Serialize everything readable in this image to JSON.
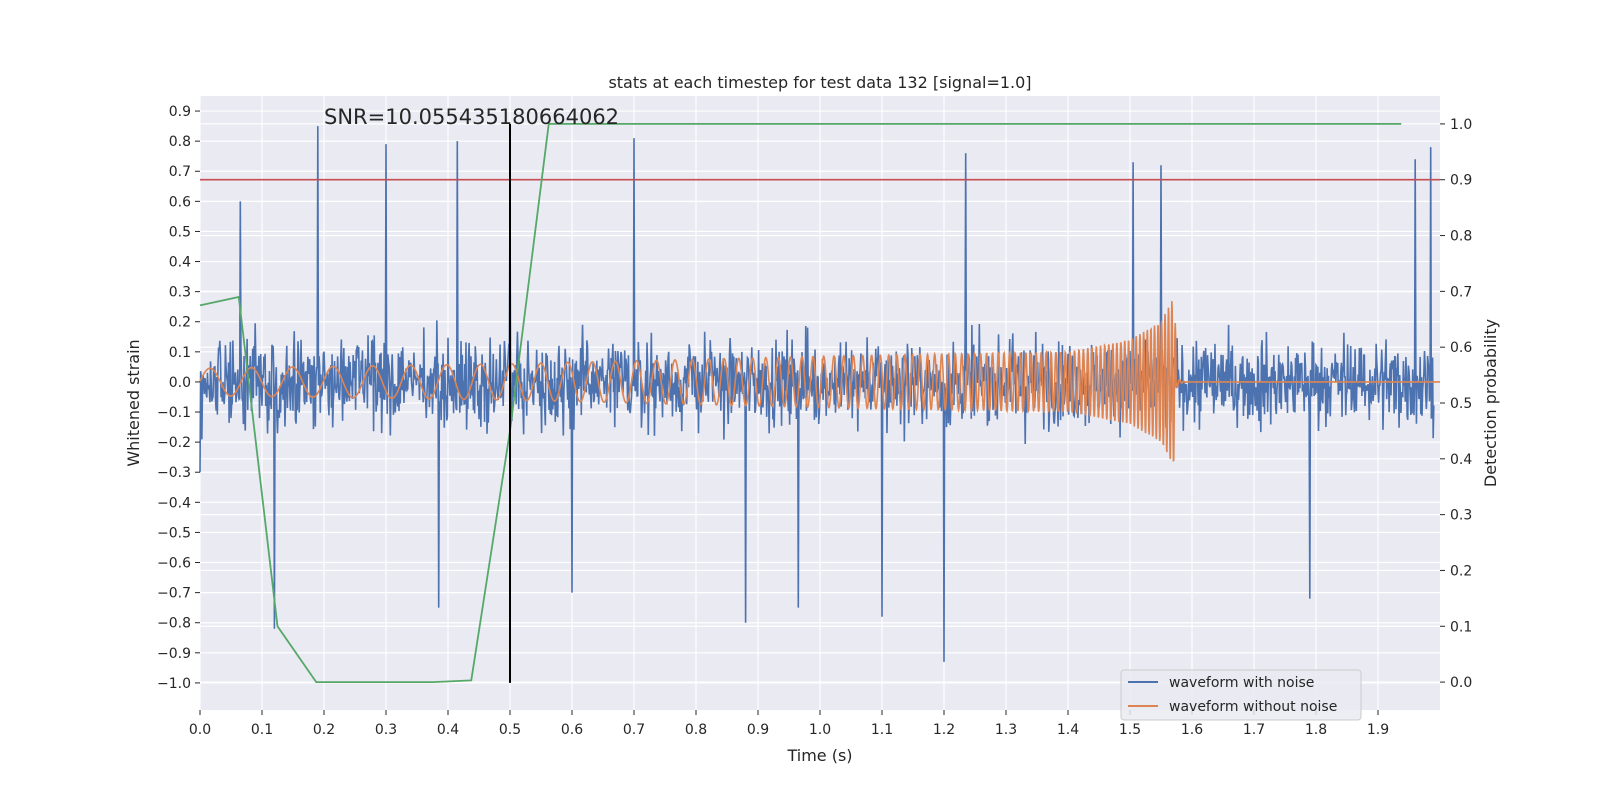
{
  "chart_data": {
    "type": "line",
    "title": "stats at each timestep for test data 132 [signal=1.0]",
    "xlabel": "Time (s)",
    "ylabel_left": "Whitened strain",
    "ylabel_right": "Detection probability",
    "xlim": [
      0.0,
      2.0
    ],
    "ylim_left": [
      -1.09,
      0.95
    ],
    "ylim_right": [
      -0.05,
      1.05
    ],
    "x_ticks": [
      "0.0",
      "0.1",
      "0.2",
      "0.3",
      "0.4",
      "0.5",
      "0.6",
      "0.7",
      "0.8",
      "0.9",
      "1.0",
      "1.1",
      "1.2",
      "1.3",
      "1.4",
      "1.5",
      "1.6",
      "1.7",
      "1.8",
      "1.9"
    ],
    "y_ticks_left": [
      "0.9",
      "0.8",
      "0.7",
      "0.6",
      "0.5",
      "0.4",
      "0.3",
      "0.2",
      "0.1",
      "0.0",
      "−0.1",
      "−0.2",
      "−0.3",
      "−0.4",
      "−0.5",
      "−0.6",
      "−0.7",
      "−0.8",
      "−0.9",
      "−1.0"
    ],
    "y_ticks_right": [
      "1.0",
      "0.9",
      "0.8",
      "0.7",
      "0.6",
      "0.5",
      "0.4",
      "0.3",
      "0.2",
      "0.1",
      "0.0"
    ],
    "grid": true,
    "legend_position": "bottom-right",
    "annotation": "SNR=10.055435180664062",
    "threshold_line": {
      "axis": "right",
      "value": 0.9,
      "color": "#c44e52"
    },
    "event_line": {
      "x": 0.5,
      "color": "#000000"
    },
    "series": [
      {
        "name": "waveform with noise",
        "axis": "left",
        "color": "#4c72b0",
        "description_samples": {
          "x": [
            0.0,
            0.065,
            0.12,
            0.19,
            0.3,
            0.385,
            0.415,
            0.5,
            0.6,
            0.7,
            0.88,
            0.965,
            1.1,
            1.2,
            1.235,
            1.505,
            1.55,
            1.79,
            1.96,
            1.985
          ],
          "y": [
            -0.3,
            0.6,
            -0.82,
            0.85,
            0.79,
            -0.75,
            0.8,
            0.63,
            -0.7,
            0.81,
            -0.8,
            -0.75,
            -0.78,
            -0.93,
            0.76,
            0.73,
            0.72,
            -0.72,
            0.74,
            0.78
          ]
        }
      },
      {
        "name": "waveform without noise",
        "axis": "left",
        "color": "#dd8452",
        "description_samples": {
          "x": [
            0.0,
            0.5,
            1.0,
            1.4,
            1.5,
            1.55,
            1.57,
            1.58,
            2.0
          ],
          "y": [
            0.045,
            0.06,
            0.085,
            0.1,
            0.14,
            0.2,
            0.28,
            0.0,
            0.0
          ]
        }
      },
      {
        "name": "",
        "axis": "right",
        "color": "#55a868",
        "x": [
          0.0,
          0.0625,
          0.125,
          0.1875,
          0.25,
          0.3125,
          0.375,
          0.4375,
          0.5,
          0.5625,
          0.625,
          0.6875,
          0.75,
          0.8125,
          0.875,
          0.9375,
          1.0,
          1.0625,
          1.125,
          1.1875,
          1.25,
          1.3125,
          1.375,
          1.4375,
          1.5,
          1.5625,
          1.625,
          1.6875,
          1.75,
          1.8125,
          1.875,
          1.9375
        ],
        "y": [
          0.675,
          0.69,
          0.1,
          0.0,
          0.0,
          0.0,
          0.0,
          0.003,
          0.45,
          1.0,
          1.0,
          1.0,
          1.0,
          1.0,
          1.0,
          1.0,
          1.0,
          1.0,
          1.0,
          1.0,
          1.0,
          1.0,
          1.0,
          1.0,
          1.0,
          1.0,
          1.0,
          1.0,
          1.0,
          1.0,
          1.0,
          1.0
        ]
      }
    ]
  }
}
